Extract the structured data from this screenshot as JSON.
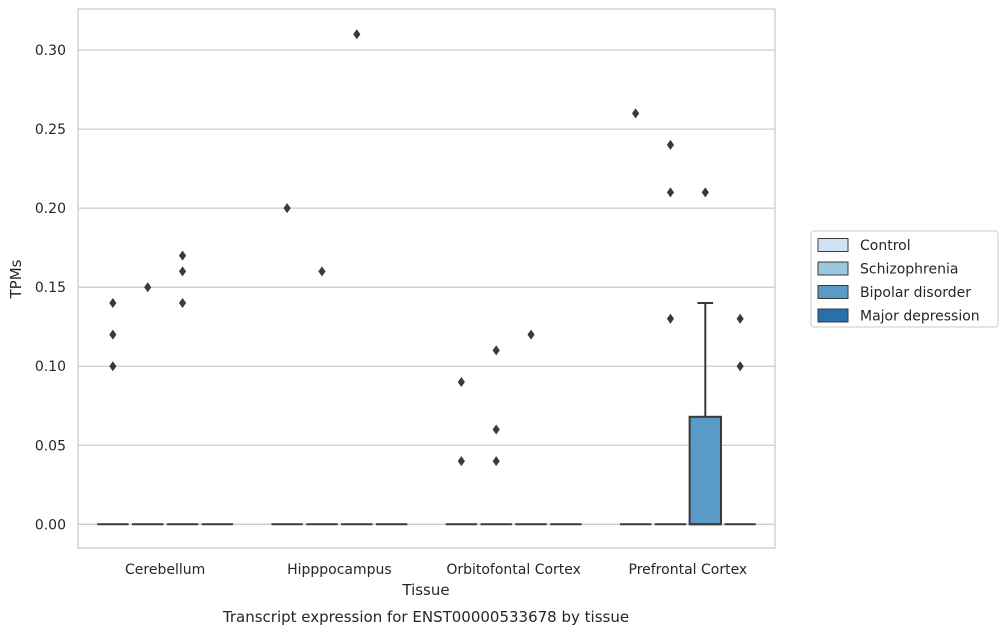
{
  "chart_data": {
    "type": "box",
    "xlabel": "Tissue",
    "ylabel": "TPMs",
    "caption": "Transcript expression for ENST00000533678 by tissue",
    "categories": [
      "Cerebellum",
      "Hipppocampus",
      "Orbitofontal Cortex",
      "Prefrontal Cortex"
    ],
    "ylim": [
      -0.015,
      0.326
    ],
    "yticks": [
      "0.00",
      "0.05",
      "0.10",
      "0.15",
      "0.20",
      "0.25",
      "0.30"
    ],
    "grid": true,
    "legend_position": "right",
    "series": [
      {
        "name": "Control",
        "color": "#d1e2f2",
        "boxes": [
          {
            "category": "Cerebellum",
            "q1": 0,
            "median": 0,
            "q3": 0,
            "whisker_low": 0,
            "whisker_high": 0,
            "outliers": [
              0.1,
              0.12,
              0.14
            ]
          },
          {
            "category": "Hipppocampus",
            "q1": 0,
            "median": 0,
            "q3": 0,
            "whisker_low": 0,
            "whisker_high": 0,
            "outliers": [
              0.2
            ]
          },
          {
            "category": "Orbitofontal Cortex",
            "q1": 0,
            "median": 0,
            "q3": 0,
            "whisker_low": 0,
            "whisker_high": 0,
            "outliers": [
              0.04,
              0.09
            ]
          },
          {
            "category": "Prefrontal Cortex",
            "q1": 0,
            "median": 0,
            "q3": 0,
            "whisker_low": 0,
            "whisker_high": 0,
            "outliers": [
              0.26
            ]
          }
        ]
      },
      {
        "name": "Schizophrenia",
        "color": "#9ac8e0",
        "boxes": [
          {
            "category": "Cerebellum",
            "q1": 0,
            "median": 0,
            "q3": 0,
            "whisker_low": 0,
            "whisker_high": 0,
            "outliers": [
              0.15
            ]
          },
          {
            "category": "Hipppocampus",
            "q1": 0,
            "median": 0,
            "q3": 0,
            "whisker_low": 0,
            "whisker_high": 0,
            "outliers": [
              0.16
            ]
          },
          {
            "category": "Orbitofontal Cortex",
            "q1": 0,
            "median": 0,
            "q3": 0,
            "whisker_low": 0,
            "whisker_high": 0,
            "outliers": [
              0.04,
              0.06,
              0.11
            ]
          },
          {
            "category": "Prefrontal Cortex",
            "q1": 0,
            "median": 0,
            "q3": 0,
            "whisker_low": 0,
            "whisker_high": 0,
            "outliers": [
              0.13,
              0.21,
              0.24
            ]
          }
        ]
      },
      {
        "name": "Bipolar disorder",
        "color": "#5a9ac7",
        "boxes": [
          {
            "category": "Cerebellum",
            "q1": 0,
            "median": 0,
            "q3": 0,
            "whisker_low": 0,
            "whisker_high": 0,
            "outliers": [
              0.14,
              0.16,
              0.17
            ]
          },
          {
            "category": "Hipppocampus",
            "q1": 0,
            "median": 0,
            "q3": 0,
            "whisker_low": 0,
            "whisker_high": 0,
            "outliers": [
              0.31
            ]
          },
          {
            "category": "Orbitofontal Cortex",
            "q1": 0,
            "median": 0,
            "q3": 0,
            "whisker_low": 0,
            "whisker_high": 0,
            "outliers": [
              0.12
            ]
          },
          {
            "category": "Prefrontal Cortex",
            "q1": 0,
            "median": 0,
            "q3": 0.068,
            "whisker_low": 0,
            "whisker_high": 0.14,
            "outliers": [
              0.21
            ]
          }
        ]
      },
      {
        "name": "Major depression",
        "color": "#2a6fad",
        "boxes": [
          {
            "category": "Cerebellum",
            "q1": 0,
            "median": 0,
            "q3": 0,
            "whisker_low": 0,
            "whisker_high": 0,
            "outliers": []
          },
          {
            "category": "Hipppocampus",
            "q1": 0,
            "median": 0,
            "q3": 0,
            "whisker_low": 0,
            "whisker_high": 0,
            "outliers": []
          },
          {
            "category": "Orbitofontal Cortex",
            "q1": 0,
            "median": 0,
            "q3": 0,
            "whisker_low": 0,
            "whisker_high": 0,
            "outliers": []
          },
          {
            "category": "Prefrontal Cortex",
            "q1": 0,
            "median": 0,
            "q3": 0,
            "whisker_low": 0,
            "whisker_high": 0,
            "outliers": [
              0.1,
              0.13
            ]
          }
        ]
      }
    ]
  },
  "colors": {
    "grid": "#cccccc",
    "frame": "#cccccc",
    "line": "#3a3a3a",
    "text": "#262626"
  }
}
